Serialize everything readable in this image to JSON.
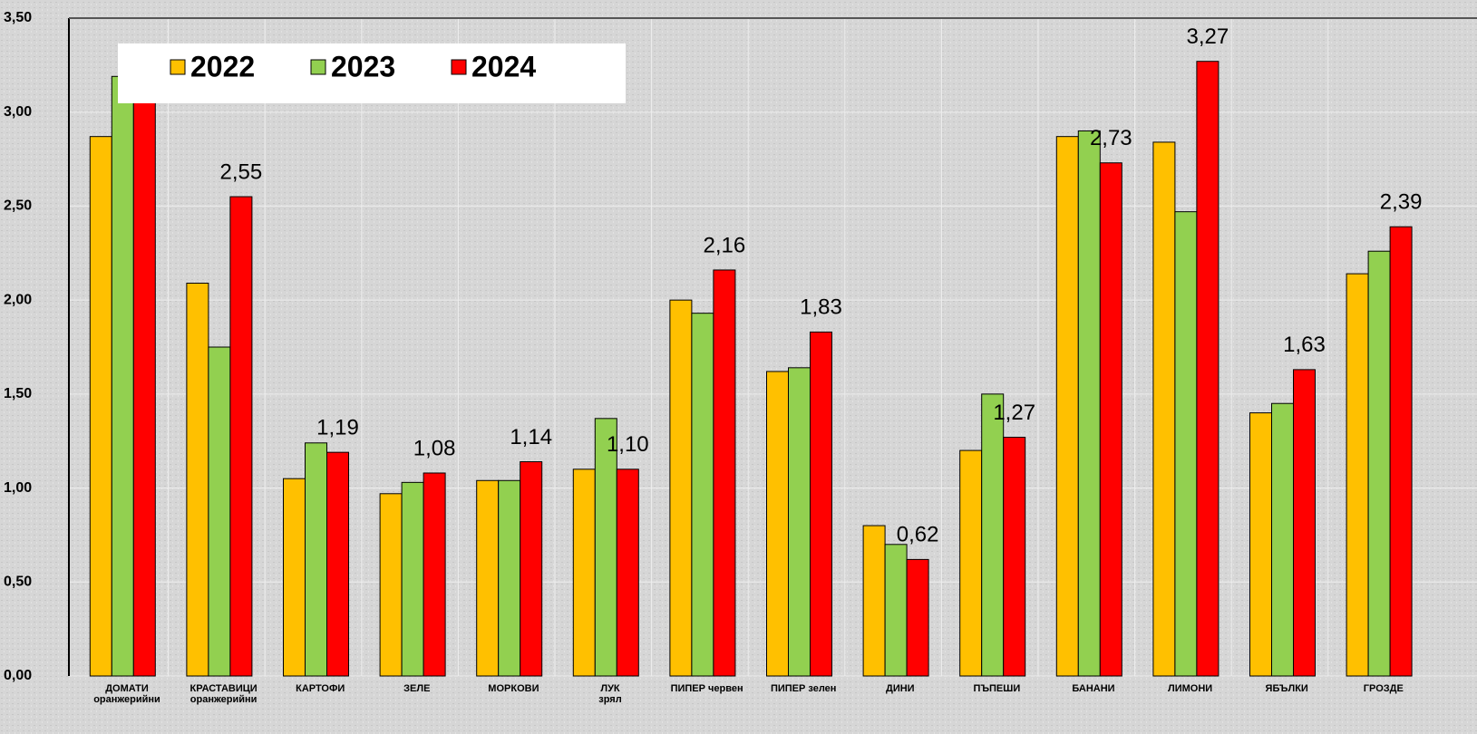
{
  "chart_data": {
    "type": "bar",
    "categories": [
      "ДОМАТИ\nоранжерийни",
      "КРАСТАВИЦИ\nоранжерийни",
      "КАРТОФИ",
      "ЗЕЛЕ",
      "МОРКОВИ",
      "ЛУК\nзрял",
      "ПИПЕР червен",
      "ПИПЕР зелен",
      "ДИНИ",
      "ПЪПЕШИ",
      "БАНАНИ",
      "ЛИМОНИ",
      "ЯБЪЛКИ",
      "ГРОЗДЕ"
    ],
    "series": [
      {
        "name": "2022",
        "color": "#ffc000",
        "values": [
          2.87,
          2.09,
          1.05,
          0.97,
          1.04,
          1.1,
          2.0,
          1.62,
          0.8,
          1.2,
          2.87,
          2.84,
          1.4,
          2.14
        ]
      },
      {
        "name": "2023",
        "color": "#92d050",
        "values": [
          3.19,
          1.75,
          1.24,
          1.03,
          1.04,
          1.37,
          1.93,
          1.64,
          0.7,
          1.5,
          2.9,
          2.47,
          1.45,
          2.26
        ]
      },
      {
        "name": "2024",
        "color": "#ff0000",
        "values": [
          3.15,
          2.55,
          1.19,
          1.08,
          1.14,
          1.1,
          2.16,
          1.83,
          0.62,
          1.27,
          2.73,
          3.27,
          1.63,
          2.39
        ],
        "value_labels": [
          null,
          "2,55",
          "1,19",
          "1,08",
          "1,14",
          "1,10",
          "2,16",
          "1,83",
          "0,62",
          "1,27",
          "2,73",
          "3,27",
          "1,63",
          "2,39"
        ]
      }
    ],
    "ylim": [
      0,
      3.5
    ],
    "yticks": [
      {
        "value": 0,
        "label": "0,00"
      },
      {
        "value": 0.5,
        "label": "0,50"
      },
      {
        "value": 1,
        "label": "1,00"
      },
      {
        "value": 1.5,
        "label": "1,50"
      },
      {
        "value": 2,
        "label": "2,00"
      },
      {
        "value": 2.5,
        "label": "2,50"
      },
      {
        "value": 3,
        "label": "3,00"
      },
      {
        "value": 3.5,
        "label": "3,50"
      }
    ],
    "grid": true,
    "legend": "top-left"
  }
}
